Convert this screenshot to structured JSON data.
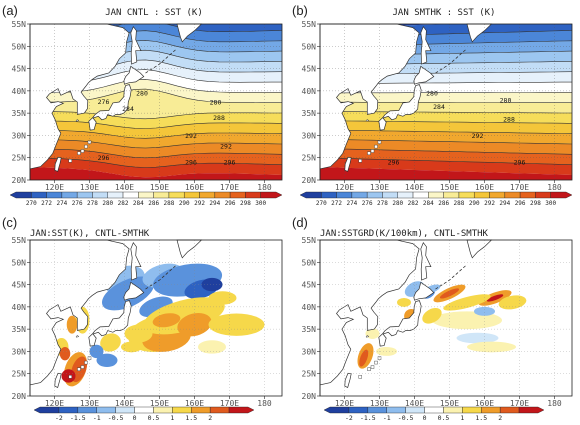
{
  "panels": [
    {
      "label": "(a)",
      "title": "JAN CNTL : SST (K)",
      "kind": "sst",
      "contour_labels": [
        "276",
        "280",
        "284",
        "288",
        "292",
        "296",
        "296",
        "276",
        "280",
        "284",
        "288",
        "292",
        "296"
      ]
    },
    {
      "label": "(b)",
      "title": "JAN SMTHK : SST (K)",
      "kind": "sst",
      "contour_labels": [
        "276",
        "280",
        "284",
        "288",
        "292",
        "296",
        "296"
      ]
    },
    {
      "label": "(c)",
      "title": "JAN:SST(K), CNTL-SMTHK",
      "kind": "diff"
    },
    {
      "label": "(d)",
      "title": "JAN:SSTGRD(K/100km), CNTL-SMTHK",
      "kind": "diff"
    }
  ],
  "axes": {
    "lat_labels": [
      "55N",
      "50N",
      "45N",
      "40N",
      "35N",
      "30N",
      "25N",
      "20N"
    ],
    "lon_labels": [
      "120E",
      "130E",
      "140E",
      "150E",
      "160E",
      "170E",
      "180"
    ]
  },
  "colorbars": {
    "sst": {
      "labels": [
        "270",
        "272",
        "274",
        "276",
        "278",
        "280",
        "282",
        "284",
        "286",
        "288",
        "290",
        "292",
        "294",
        "296",
        "298",
        "300"
      ],
      "colors": [
        "#1f3f9e",
        "#2e62c2",
        "#4b86d8",
        "#73a8e6",
        "#9cc6f0",
        "#c2ddf6",
        "#e6f1fb",
        "#ffffff",
        "#fbf6c8",
        "#f8ec96",
        "#f6dd5a",
        "#f4c63a",
        "#f1a82e",
        "#ec8a26",
        "#e5621e",
        "#d83a1a",
        "#c2161a"
      ]
    },
    "diff": {
      "labels": [
        "-2",
        "-1.5",
        "-1",
        "-0.5",
        "0",
        "0.5",
        "1",
        "1.5",
        "2"
      ],
      "colors": [
        "#1f3f9e",
        "#2e62c2",
        "#5a92dc",
        "#8fbdee",
        "#d0e6f8",
        "#ffffff",
        "#fbf2b0",
        "#f6d84a",
        "#ef9c2a",
        "#e05a1e",
        "#c2161a"
      ]
    }
  }
}
